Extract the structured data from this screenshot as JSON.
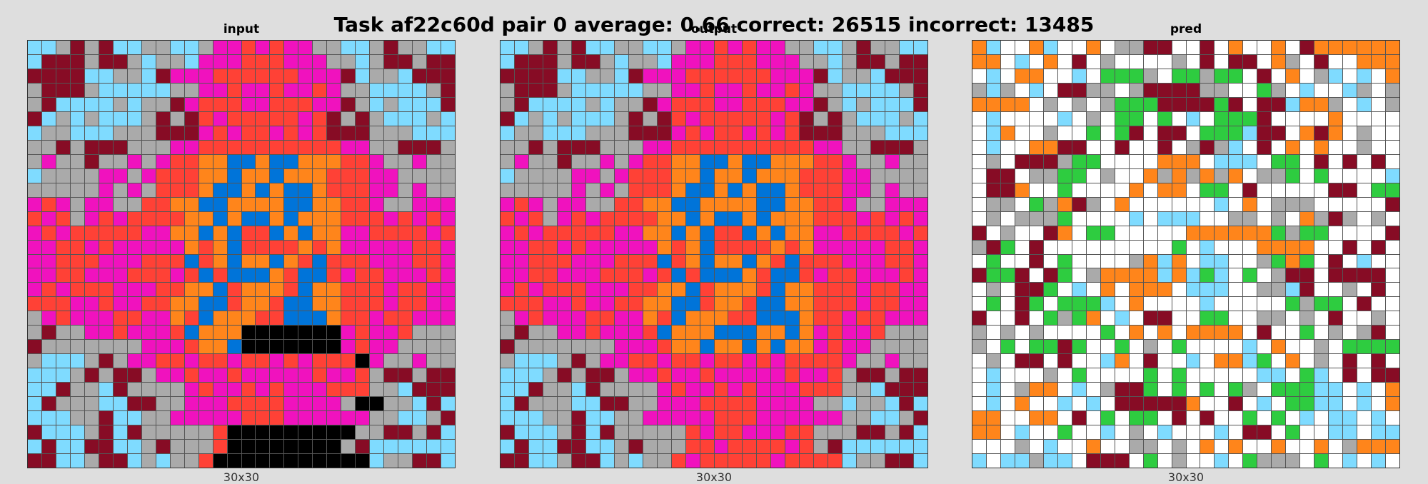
{
  "figure": {
    "title": "Task af22c60d pair 0 average: 0.66 correct: 26515 incorrect: 13485"
  },
  "palette": {
    "0": "#000000",
    "1": "#0074D9",
    "2": "#FF4136",
    "3": "#2ECC40",
    "4": "#FFDC00",
    "5": "#AAAAAA",
    "6": "#F012BE",
    "7": "#FF851B",
    "8": "#7FDBFF",
    "9": "#870C25",
    "w": "#FFFFFF"
  },
  "panels": [
    {
      "title": "input",
      "size_label": "30x30",
      "rows": [
        "885959885588566262665588595588",
        "899959958558666222666558599599",
        "999988558966622222266698558999",
        "599958888855662662662655888859",
        "598888585596222662226695858889",
        "985858885959262222262959588858",
        "855888555999626226262999555888",
        "559599955566222222222266559995",
        "565595565622771171177722655655",
        "855556656222771771777222665555",
        "555556565222711717117222665655",
        "626566552277117777117722655666",
        "262562622227717117177722262626",
        "626222226677171221717766222262",
        "662262666667271222272766666226",
        "662226662221271771721222666226",
        "662266622262121117211262266626",
        "626222666227712777217722262266",
        "222662662277112772117722262266",
        "562666226672177722111722622666",
        "595566266621777000000062662555",
        "955555556662771000000062665555",
        "588859566226226226262220655655",
        "888595995662662666662662599599",
        "889558955556266262666222558999",
        "895558899556662222666650055898",
        "888559885566666222666666558859",
        "988859895555520000000005599598",
        "898899885955520000000059888888",
        "998859985855200000000000855998"
      ]
    },
    {
      "title": "output",
      "size_label": "30x30",
      "rows": [
        "885959885588566262665588595588",
        "899959958558666222666558599599",
        "999988558966622222266698558999",
        "599958888855662662662655888859",
        "598888585596222662226695858889",
        "985858885959262222262959588858",
        "855888555999626226262999555888",
        "559599955566222222222266559995",
        "565595565622771171177722655655",
        "855556656222771771777222665555",
        "555556565222711717117222665655",
        "626566552277117777117722655666",
        "262562622227717117177722262626",
        "626222226677171221717766222262",
        "662262666667271222272766666226",
        "662226662221271771721222666226",
        "662266622262121117211262266626",
        "626222666227712777217722262266",
        "222662662277112772117722262266",
        "562666226672177722111722622666",
        "595566266621777111771762662555",
        "955555556662771771717762665555",
        "588859566226226226262222655655",
        "888595995662662666662662599599",
        "889558955556266262666222558999",
        "895558899556662222666655855898",
        "888559885566666222666666558859",
        "988859895555526226662255599598",
        "898899885955522622226259888888",
        "998859985855262222262222855998"
      ]
    },
    {
      "title": "pred",
      "size_label": "30x30",
      "rows": [
        "78ww78ww7w5599ww9w7ww7w9777777",
        "77w8w7w9w5wwww5w9w99w75w9ww777",
        "w8w77ww8w3335w33533w9w7w58w8w7",
        "585w8w9955w5999955ww35w8ww85w5",
        "7777w5w5w5333999939w998775w8w5",
        "w8wwww8w5w33w3w8w3339wwww7wwww",
        "w87ww5ww3w39w99w333899w797w5ww",
        "w8ww7799ww9ww9w5958w9w7w7ww5ww",
        "w5w999533wwww777w888w33w9w9w9w",
        "w99w5533w5ww7575757w553w3wwww8",
        "w997ww3wwww7w77w33w9wwwww99w33",
        "w55w35795w7wwwwww8w7w555wwwww9",
        "w5w5553wwww8w888ww55w5w7595w5w",
        "9w5ww97w33wwwww7777773533wwww9",
        "593w9wwwwwwwww3w8www7777ww9w9w",
        "w3ww9w3wwww5787w88ww5373w9w8wv",
        "9339w93w5777787838w3w599w9999w",
        "w5w993w8w7w777w888ww5589ww5w9w",
        "w3w93w3338w7wwww8wwwww3533w9ww",
        "9ww9w3537w8w99ww33ww55w5w9ww5w",
        "5w5w5wwww3w7w7w7777w9ww3w5w59w",
        "5w3w3393ww3w5w3wwww8w7ww5w3333",
        "w5w99w9ww87w9ww8w7783w7w5w9w9w",
        "w8www5w3wwww3w3wwwww88w38w9w99",
        "w8w577w8w5993w3w3w35w33388w8w7",
        "w8w7ww8w8w999997ww9w8w3388w8w7",
        "77ww77w9w3w33w9w9ww3w3w8w88w8w",
        "77w8ww3ww8w5w8www8w99w3ww88w88",
        "www5w8ww7ww55w5w7w7ww7ww7w5777",
        "8w88588w999w3w5ww8w3555w3w8w8w"
      ]
    }
  ]
}
